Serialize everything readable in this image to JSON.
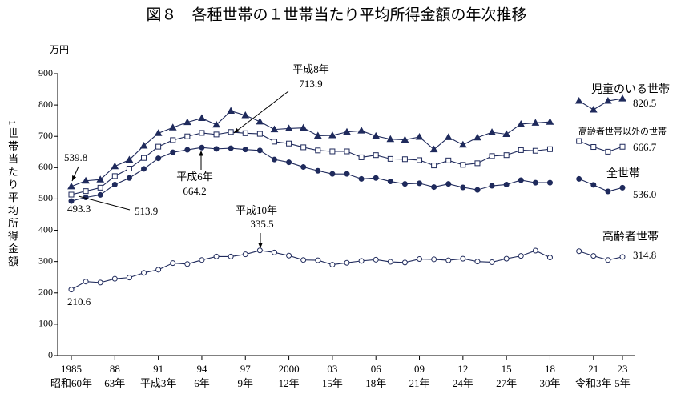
{
  "chart_data": {
    "type": "line",
    "title": "図８　各種世帯の１世帯当たり平均所得金額の年次推移",
    "y_unit": "万円",
    "y_label": "1世帯当たり平均所得金額",
    "x": [
      1985,
      1986,
      1987,
      1988,
      1989,
      1990,
      1991,
      1992,
      1993,
      1994,
      1995,
      1996,
      1997,
      1998,
      1999,
      2000,
      2001,
      2002,
      2003,
      2004,
      2005,
      2006,
      2007,
      2008,
      2009,
      2010,
      2011,
      2012,
      2013,
      2014,
      2015,
      2016,
      2017,
      2018,
      2019,
      2020,
      2021,
      2022,
      2023
    ],
    "series": [
      {
        "name": "児童のいる世帯",
        "color": "#1f2a5c",
        "marker": "triangle",
        "values": [
          539.8,
          558,
          562,
          604,
          625,
          670,
          710,
          728,
          745,
          758,
          737,
          781,
          767,
          747,
          722,
          725,
          727,
          702,
          703,
          714,
          718,
          701,
          691,
          689,
          698,
          658,
          697,
          673,
          696,
          713,
          707,
          739,
          743,
          746,
          null,
          813,
          785,
          813,
          820.5
        ],
        "value_labels": [
          "539.8",
          null,
          null,
          null,
          null,
          null,
          null,
          null,
          null,
          null,
          null,
          null,
          null,
          null,
          null,
          null,
          null,
          null,
          null,
          null,
          null,
          null,
          null,
          null,
          null,
          null,
          null,
          null,
          null,
          null,
          null,
          null,
          null,
          null,
          null,
          null,
          null,
          null,
          "820.5"
        ]
      },
      {
        "name": "高齢者世帯以外の世帯",
        "color": "#1f2a5c",
        "marker": "square",
        "values": [
          513.9,
          525,
          536,
          573,
          597,
          631,
          667,
          688,
          700,
          711,
          706,
          713.9,
          710,
          708,
          683,
          677,
          665,
          655,
          652,
          652,
          633,
          640,
          628,
          627,
          624,
          607,
          623,
          609,
          614,
          637,
          640,
          656,
          654,
          659,
          null,
          685,
          666,
          651,
          666.7
        ],
        "value_labels": [
          "513.9",
          null,
          null,
          null,
          null,
          null,
          null,
          null,
          null,
          null,
          null,
          "713.9",
          null,
          null,
          null,
          null,
          null,
          null,
          null,
          null,
          null,
          null,
          null,
          null,
          null,
          null,
          null,
          null,
          null,
          null,
          null,
          null,
          null,
          null,
          null,
          null,
          null,
          null,
          "666.7"
        ]
      },
      {
        "name": "全世帯",
        "color": "#1f2a5c",
        "marker": "circle-filled",
        "values": [
          493.3,
          505,
          513,
          546,
          567,
          596,
          630,
          649,
          657,
          664.2,
          660,
          662,
          658,
          655,
          626,
          617,
          602,
          590,
          580,
          580,
          564,
          567,
          556,
          548,
          550,
          538,
          548,
          537,
          529,
          542,
          546,
          560,
          552,
          552,
          null,
          564,
          545,
          524,
          536.0
        ],
        "value_labels": [
          "493.3",
          null,
          null,
          null,
          null,
          null,
          null,
          null,
          null,
          "664.2",
          null,
          null,
          null,
          null,
          null,
          null,
          null,
          null,
          null,
          null,
          null,
          null,
          null,
          null,
          null,
          null,
          null,
          null,
          null,
          null,
          null,
          null,
          null,
          null,
          null,
          null,
          null,
          null,
          "536.0"
        ]
      },
      {
        "name": "高齢者世帯",
        "color": "#1f2a5c",
        "marker": "circle-open",
        "values": [
          210.6,
          236,
          233,
          245,
          249,
          264,
          274,
          295,
          292,
          305,
          316,
          316,
          323,
          335.5,
          329,
          319,
          305,
          304,
          290,
          296,
          302,
          306,
          299,
          297,
          308,
          307,
          304,
          309,
          300,
          298,
          309,
          318,
          335,
          313,
          null,
          333,
          318,
          305,
          314.8
        ],
        "value_labels": [
          "210.6",
          null,
          null,
          null,
          null,
          null,
          null,
          null,
          null,
          null,
          null,
          null,
          null,
          "335.5",
          null,
          null,
          null,
          null,
          null,
          null,
          null,
          null,
          null,
          null,
          null,
          null,
          null,
          null,
          null,
          null,
          null,
          null,
          null,
          null,
          null,
          null,
          null,
          null,
          "314.8"
        ]
      }
    ],
    "annotations": [
      "平成8年",
      "平成6年",
      "平成10年"
    ],
    "ylim": [
      0,
      900
    ],
    "yticks": [
      0,
      100,
      200,
      300,
      400,
      500,
      600,
      700,
      800,
      900
    ],
    "xlim": [
      1985,
      2023
    ],
    "xticks": [
      1985,
      {
        "value": 1988,
        "label": "88"
      },
      {
        "value": 1991,
        "label": "91"
      },
      {
        "value": 1994,
        "label": "94"
      },
      {
        "value": 1997,
        "label": "97"
      },
      2000,
      {
        "value": 2003,
        "label": "03"
      },
      {
        "value": 2006,
        "label": "06"
      },
      {
        "value": 2009,
        "label": "09"
      },
      {
        "value": 2012,
        "label": "12"
      },
      {
        "value": 2015,
        "label": "15"
      },
      {
        "value": 2018,
        "label": "18"
      },
      {
        "value": 2021,
        "label": "21"
      },
      {
        "value": 2023,
        "label": "23"
      }
    ],
    "era_labels": [
      "昭和60年",
      "63年",
      "平成3年",
      "6年",
      "9年",
      "12年",
      "15年",
      "18年",
      "21年",
      "24年",
      "27年",
      "30年",
      "令和3年",
      "5年"
    ]
  }
}
